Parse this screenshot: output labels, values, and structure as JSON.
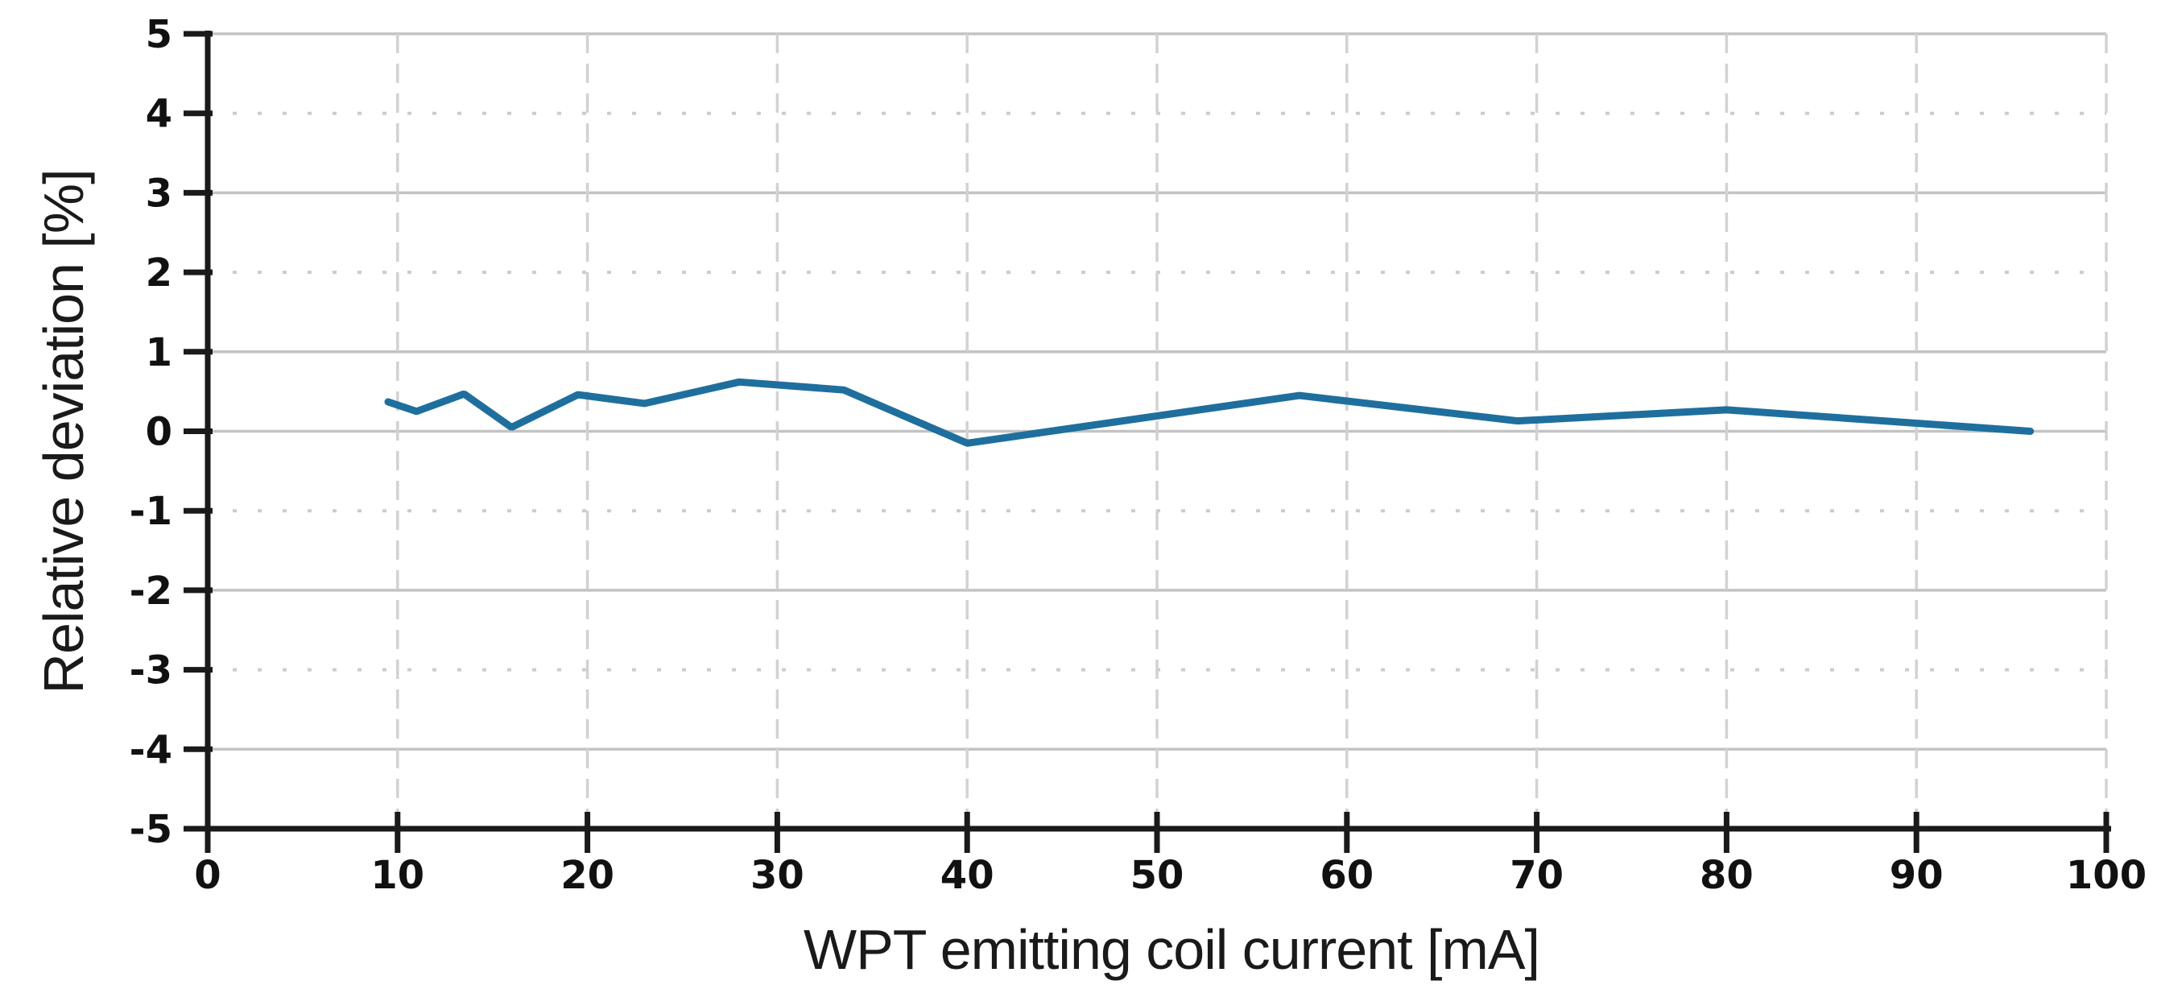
{
  "chart_data": {
    "type": "line",
    "xlabel": "WPT emitting coil current [mA]",
    "ylabel": "Relative deviation [%]",
    "xlim": [
      0,
      100
    ],
    "ylim": [
      -5,
      5
    ],
    "xticks": [
      0,
      10,
      20,
      30,
      40,
      50,
      60,
      70,
      80,
      90,
      100
    ],
    "yticks": [
      5,
      4,
      3,
      2,
      1,
      0,
      -1,
      -2,
      -3,
      -4,
      -5
    ],
    "grid": {
      "solid_y": [
        5,
        3,
        1,
        0,
        -2,
        -4
      ],
      "dotted_y": [
        4,
        2,
        -1,
        -3
      ],
      "vertical_x": [
        10,
        20,
        30,
        40,
        50,
        60,
        70,
        80,
        90,
        100
      ]
    },
    "legend": "none",
    "series": [
      {
        "x": [
          9.5,
          11,
          13.5,
          16,
          19.5,
          23,
          28,
          33.5,
          40,
          57.5,
          69,
          80,
          96
        ],
        "y": [
          0.37,
          0.25,
          0.47,
          0.05,
          0.46,
          0.35,
          0.62,
          0.52,
          -0.15,
          0.45,
          0.13,
          0.27,
          0.0
        ]
      }
    ],
    "colors": {
      "line": "#1f6f9e",
      "axis": "#1a1a1a",
      "grid_solid": "#c3c3c3",
      "grid_dotted": "#cccccc",
      "grid_vertical": "#d2d2d2",
      "background": "#ffffff",
      "tick_label": "#111111"
    }
  }
}
